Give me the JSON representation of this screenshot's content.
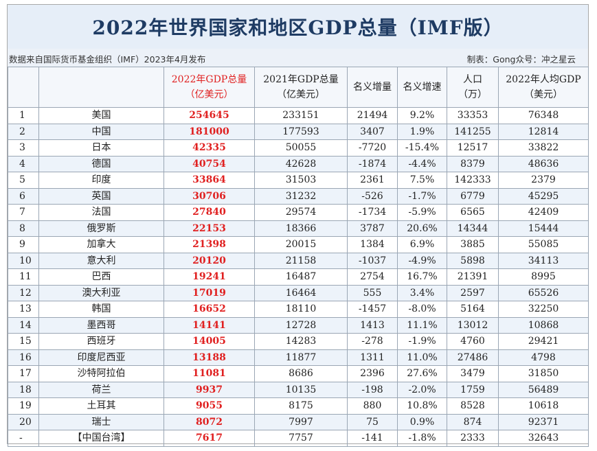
{
  "title": "2022年世界国家和地区GDP总量（IMF版）",
  "source": "数据来自国际货币基金组织（IMF）2023年4月发布",
  "credit": "制表：Gong众号：冲之星云",
  "headers": [
    {
      "line1": "",
      "line2": ""
    },
    {
      "line1": "",
      "line2": ""
    },
    {
      "line1": "2022年GDP总量",
      "line2": "（亿美元）"
    },
    {
      "line1": "2021年GDP总量",
      "line2": "（亿美元）"
    },
    {
      "line1": "名义增量",
      "line2": ""
    },
    {
      "line1": "名义增速",
      "line2": ""
    },
    {
      "line1": "人口",
      "line2": "（万）"
    },
    {
      "line1": "2022年人均GDP",
      "line2": "（美元）"
    }
  ],
  "rows": [
    {
      "rank": "1",
      "name": "美国",
      "gdp2022": "254645",
      "gdp2021": "233151",
      "increase": "21494",
      "growth": "9.2%",
      "population": "33353",
      "per_capita": "76348"
    },
    {
      "rank": "2",
      "name": "中国",
      "gdp2022": "181000",
      "gdp2021": "177593",
      "increase": "3407",
      "growth": "1.9%",
      "population": "141255",
      "per_capita": "12814"
    },
    {
      "rank": "3",
      "name": "日本",
      "gdp2022": "42335",
      "gdp2021": "50055",
      "increase": "-7720",
      "growth": "-15.4%",
      "population": "12517",
      "per_capita": "33822"
    },
    {
      "rank": "4",
      "name": "德国",
      "gdp2022": "40754",
      "gdp2021": "42628",
      "increase": "-1874",
      "growth": "-4.4%",
      "population": "8379",
      "per_capita": "48636"
    },
    {
      "rank": "5",
      "name": "印度",
      "gdp2022": "33864",
      "gdp2021": "31503",
      "increase": "2361",
      "growth": "7.5%",
      "population": "142333",
      "per_capita": "2379"
    },
    {
      "rank": "6",
      "name": "英国",
      "gdp2022": "30706",
      "gdp2021": "31232",
      "increase": "-526",
      "growth": "-1.7%",
      "population": "6779",
      "per_capita": "45295"
    },
    {
      "rank": "7",
      "name": "法国",
      "gdp2022": "27840",
      "gdp2021": "29574",
      "increase": "-1734",
      "growth": "-5.9%",
      "population": "6565",
      "per_capita": "42409"
    },
    {
      "rank": "8",
      "name": "俄罗斯",
      "gdp2022": "22153",
      "gdp2021": "18366",
      "increase": "3787",
      "growth": "20.6%",
      "population": "14344",
      "per_capita": "15444"
    },
    {
      "rank": "9",
      "name": "加拿大",
      "gdp2022": "21398",
      "gdp2021": "20015",
      "increase": "1384",
      "growth": "6.9%",
      "population": "3885",
      "per_capita": "55085"
    },
    {
      "rank": "10",
      "name": "意大利",
      "gdp2022": "20120",
      "gdp2021": "21158",
      "increase": "-1037",
      "growth": "-4.9%",
      "population": "5898",
      "per_capita": "34113"
    },
    {
      "rank": "11",
      "name": "巴西",
      "gdp2022": "19241",
      "gdp2021": "16487",
      "increase": "2754",
      "growth": "16.7%",
      "population": "21391",
      "per_capita": "8995"
    },
    {
      "rank": "12",
      "name": "澳大利亚",
      "gdp2022": "17019",
      "gdp2021": "16464",
      "increase": "555",
      "growth": "3.4%",
      "population": "2597",
      "per_capita": "65526"
    },
    {
      "rank": "13",
      "name": "韩国",
      "gdp2022": "16652",
      "gdp2021": "18110",
      "increase": "-1457",
      "growth": "-8.0%",
      "population": "5164",
      "per_capita": "32250"
    },
    {
      "rank": "14",
      "name": "墨西哥",
      "gdp2022": "14141",
      "gdp2021": "12728",
      "increase": "1413",
      "growth": "11.1%",
      "population": "13012",
      "per_capita": "10868"
    },
    {
      "rank": "15",
      "name": "西班牙",
      "gdp2022": "14005",
      "gdp2021": "14283",
      "increase": "-278",
      "growth": "-1.9%",
      "population": "4760",
      "per_capita": "29421"
    },
    {
      "rank": "16",
      "name": "印度尼西亚",
      "gdp2022": "13188",
      "gdp2021": "11877",
      "increase": "1311",
      "growth": "11.0%",
      "population": "27486",
      "per_capita": "4798"
    },
    {
      "rank": "17",
      "name": "沙特阿拉伯",
      "gdp2022": "11081",
      "gdp2021": "8686",
      "increase": "2396",
      "growth": "27.6%",
      "population": "3479",
      "per_capita": "31850"
    },
    {
      "rank": "18",
      "name": "荷兰",
      "gdp2022": "9937",
      "gdp2021": "10135",
      "increase": "-198",
      "growth": "-2.0%",
      "population": "1759",
      "per_capita": "56489"
    },
    {
      "rank": "19",
      "name": "土耳其",
      "gdp2022": "9055",
      "gdp2021": "8175",
      "increase": "880",
      "growth": "10.8%",
      "population": "8528",
      "per_capita": "10618"
    },
    {
      "rank": "20",
      "name": "瑞士",
      "gdp2022": "8072",
      "gdp2021": "7997",
      "increase": "75",
      "growth": "0.9%",
      "population": "874",
      "per_capita": "92371"
    },
    {
      "rank": "-",
      "name": "【中国台湾】",
      "gdp2022": "7617",
      "gdp2021": "7757",
      "increase": "-141",
      "growth": "-1.8%",
      "population": "2333",
      "per_capita": "32643"
    }
  ]
}
